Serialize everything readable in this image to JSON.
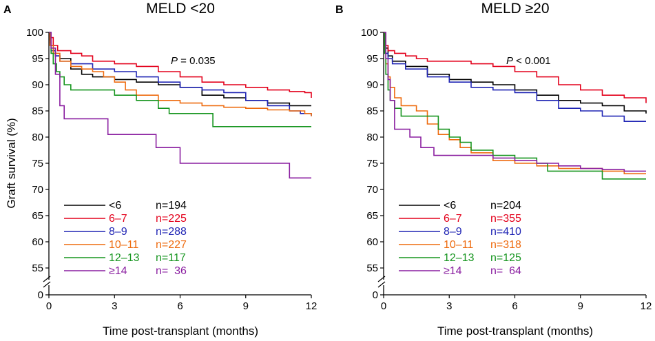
{
  "figure": {
    "ylabel": "Graft survival (%)",
    "xlabel": "Time post-transplant (months)",
    "colors": {
      "<6": "#000000",
      "6–7": "#e3001b",
      "8–9": "#1f24b4",
      "10–11": "#ee6b0f",
      "12–13": "#16951f",
      "≥14": "#8a1ea0"
    }
  },
  "chart_data": [
    {
      "type": "line",
      "panel": "A",
      "title": "MELD <20",
      "p_label": "P",
      "p_value": " = 0.035",
      "xlabel": "Time post-transplant (months)",
      "ylabel": "Graft survival (%)",
      "xlim": [
        0,
        12
      ],
      "ylim": [
        50,
        100
      ],
      "xticks": [
        0,
        3,
        6,
        9,
        12
      ],
      "yticks": [
        0,
        55,
        60,
        65,
        70,
        75,
        80,
        85,
        90,
        95,
        100
      ],
      "axis_break": true,
      "series": [
        {
          "name": "<6",
          "n_label": "n=194",
          "color": "#000000",
          "x": [
            0,
            0.05,
            0.1,
            0.2,
            0.3,
            0.5,
            1,
            1.5,
            2,
            3,
            4,
            5,
            6,
            7,
            8,
            9,
            10,
            11,
            12
          ],
          "y": [
            100,
            98.5,
            97.5,
            96.5,
            95.5,
            95,
            93,
            92,
            91.5,
            91,
            90.5,
            90,
            89.5,
            88,
            87.5,
            87,
            86.5,
            86,
            86
          ]
        },
        {
          "name": "6–7",
          "n_label": "n=225",
          "color": "#e3001b",
          "x": [
            0,
            0.05,
            0.2,
            0.4,
            1,
            1.5,
            2,
            3,
            4,
            5,
            6,
            7,
            8,
            9,
            10,
            11,
            11.7,
            12
          ],
          "y": [
            100,
            99,
            97.5,
            96.5,
            96,
            95.5,
            94.5,
            94,
            93.5,
            92.5,
            91.5,
            90.5,
            90,
            89.5,
            89,
            88.7,
            88.5,
            87.5
          ]
        },
        {
          "name": "8–9",
          "n_label": "n=288",
          "color": "#1f24b4",
          "x": [
            0,
            0.05,
            0.1,
            0.3,
            0.5,
            1,
            2,
            3,
            4,
            5,
            6,
            7,
            8,
            9,
            10,
            11,
            11.5,
            12
          ],
          "y": [
            100,
            98,
            96.5,
            95.5,
            94.5,
            94,
            93,
            92.5,
            91.5,
            90.5,
            89.5,
            89,
            88.5,
            87,
            86,
            85,
            84.5,
            84
          ]
        },
        {
          "name": "10–11",
          "n_label": "n=227",
          "color": "#ee6b0f",
          "x": [
            0,
            0.05,
            0.2,
            0.5,
            1,
            1.5,
            2,
            2.5,
            3,
            3.5,
            4,
            5,
            6,
            7,
            8,
            9,
            10,
            11,
            11.7,
            12
          ],
          "y": [
            100,
            97.5,
            96,
            94.5,
            93.5,
            93,
            92.5,
            91.5,
            90.5,
            89,
            88,
            87,
            86.5,
            86,
            85.7,
            85.5,
            85.2,
            85,
            84.5,
            84
          ]
        },
        {
          "name": "12–13",
          "n_label": "n=117",
          "color": "#16951f",
          "x": [
            0,
            0.1,
            0.2,
            0.35,
            0.5,
            0.7,
            1,
            2.5,
            3,
            4,
            5,
            5.5,
            7,
            7.5,
            12
          ],
          "y": [
            100,
            96,
            94,
            92.5,
            91.5,
            90,
            89,
            89,
            88,
            87,
            85.5,
            84.5,
            84.5,
            82,
            82
          ]
        },
        {
          "name": "≥14",
          "n_label": "n=  36",
          "color": "#8a1ea0",
          "x": [
            0,
            0.1,
            0.3,
            0.5,
            0.7,
            2.7,
            4.9,
            6,
            11,
            12
          ],
          "y": [
            100,
            97,
            92,
            86,
            83.5,
            80.5,
            78,
            75,
            72.2,
            72.2
          ]
        }
      ]
    },
    {
      "type": "line",
      "panel": "B",
      "title": "MELD ≥20",
      "p_label": "P",
      "p_value": " < 0.001",
      "xlabel": "Time post-transplant (months)",
      "ylabel": "Graft survival (%)",
      "xlim": [
        0,
        12
      ],
      "ylim": [
        50,
        100
      ],
      "xticks": [
        0,
        3,
        6,
        9,
        12
      ],
      "yticks": [
        0,
        55,
        60,
        65,
        70,
        75,
        80,
        85,
        90,
        95,
        100
      ],
      "axis_break": true,
      "series": [
        {
          "name": "<6",
          "n_label": "n=204",
          "color": "#000000",
          "x": [
            0,
            0.05,
            0.1,
            0.2,
            0.4,
            1,
            2,
            3,
            4,
            5,
            6,
            7,
            8,
            9,
            10,
            11,
            12
          ],
          "y": [
            100,
            98,
            97,
            95.5,
            94.5,
            93.5,
            92,
            91,
            90.5,
            90,
            89,
            88,
            87,
            86.5,
            86,
            85,
            84.5
          ]
        },
        {
          "name": "6–7",
          "n_label": "n=355",
          "color": "#e3001b",
          "x": [
            0,
            0.05,
            0.1,
            0.2,
            0.5,
            1,
            1.5,
            2,
            3,
            4,
            5,
            6,
            7,
            8,
            9,
            10,
            11,
            12
          ],
          "y": [
            100,
            98.5,
            97.5,
            96.5,
            96,
            95.5,
            95,
            94.5,
            94.5,
            94,
            93.5,
            92.5,
            91.5,
            90,
            89,
            88,
            87.5,
            86.5
          ]
        },
        {
          "name": "8–9",
          "n_label": "n=410",
          "color": "#1f24b4",
          "x": [
            0,
            0.05,
            0.1,
            0.2,
            0.4,
            1,
            2,
            3,
            4,
            5,
            6,
            7,
            8,
            9,
            10,
            11,
            12
          ],
          "y": [
            100,
            97.5,
            96,
            95,
            94,
            93,
            91.5,
            90.5,
            89.5,
            89,
            88.5,
            87,
            85.5,
            85,
            84,
            83,
            83
          ]
        },
        {
          "name": "10–11",
          "n_label": "n=318",
          "color": "#ee6b0f",
          "x": [
            0,
            0.05,
            0.1,
            0.2,
            0.3,
            0.5,
            0.8,
            1,
            1.5,
            2,
            2.5,
            3,
            3.5,
            4,
            5,
            6,
            7,
            8,
            9,
            10,
            11,
            12
          ],
          "y": [
            100,
            97,
            94,
            91.5,
            89.5,
            87.5,
            86,
            86,
            85,
            82.5,
            80.5,
            79.5,
            78,
            77,
            75.5,
            75,
            74.5,
            74,
            74,
            73.5,
            73,
            73
          ]
        },
        {
          "name": "12–13",
          "n_label": "n=125",
          "color": "#16951f",
          "x": [
            0,
            0.05,
            0.1,
            0.2,
            0.3,
            0.5,
            0.8,
            2,
            2.5,
            3,
            3.5,
            4,
            5,
            6,
            7,
            7.5,
            9,
            10,
            11,
            12
          ],
          "y": [
            100,
            96,
            92,
            89,
            87,
            85.5,
            84,
            84,
            81.5,
            80,
            79,
            77.5,
            76.5,
            76,
            75,
            73.5,
            73.5,
            72,
            72,
            72
          ]
        },
        {
          "name": "≥14",
          "n_label": "n=  64",
          "color": "#8a1ea0",
          "x": [
            0,
            0.1,
            0.2,
            0.3,
            0.5,
            1.2,
            1.7,
            2.3,
            3,
            4,
            5,
            6,
            7,
            8,
            9,
            10,
            11,
            12
          ],
          "y": [
            100,
            95,
            91,
            87,
            81.5,
            80,
            78,
            76.5,
            76.5,
            76.5,
            76,
            75.5,
            75,
            74.5,
            74,
            73.8,
            73.5,
            73.5
          ]
        }
      ]
    }
  ]
}
